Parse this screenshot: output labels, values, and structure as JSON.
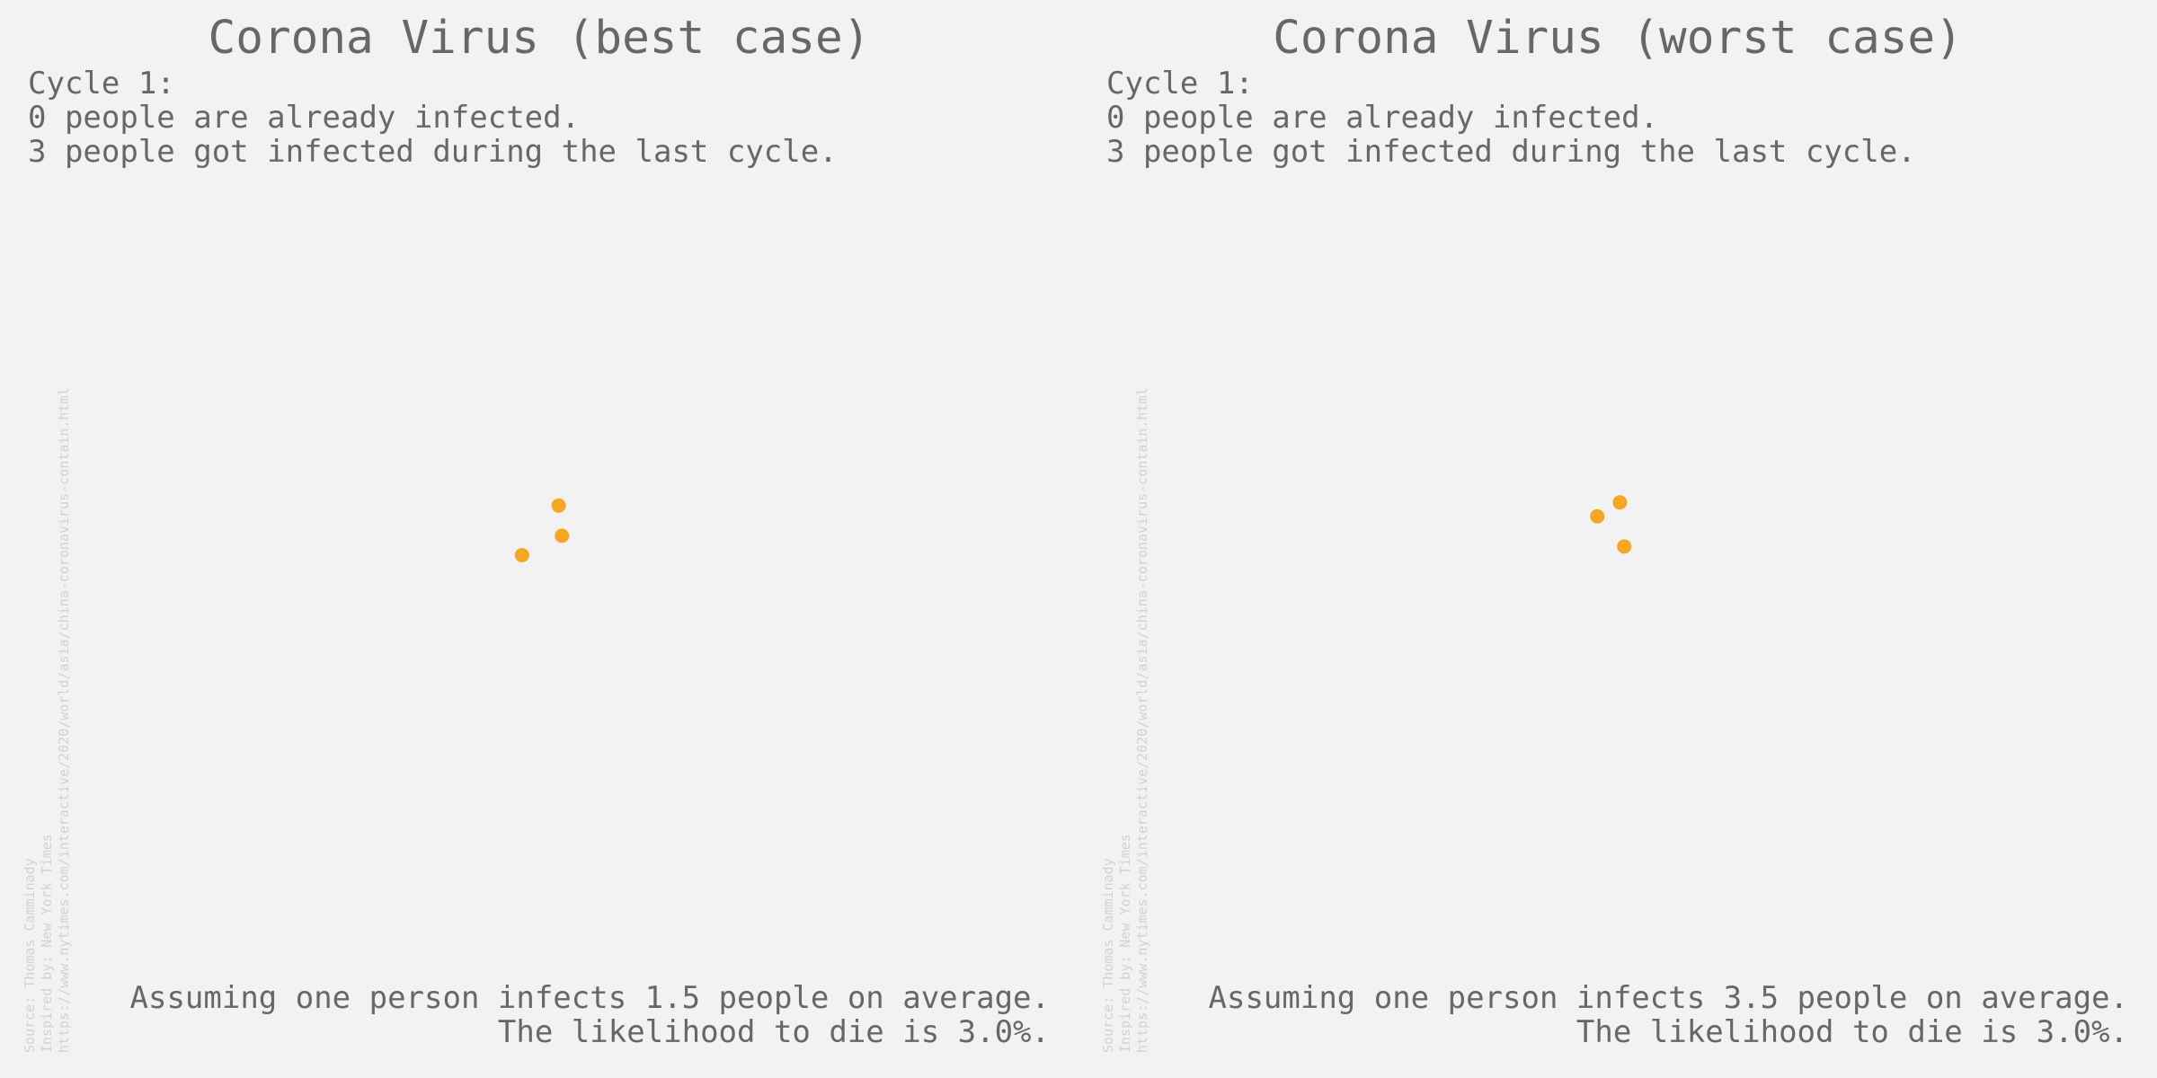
{
  "colors": {
    "background": "#f2f2f2",
    "text": "#676767",
    "source_text": "#d2d2d2",
    "infected": "#f5a623"
  },
  "panels": [
    {
      "title": "Corona Virus (best case)",
      "stats": {
        "cycle": "Cycle 1:",
        "already_infected": "0 people are already infected.",
        "new_infected": "3 people got infected during the last cycle."
      },
      "source": {
        "line1": "Source: Thomas Camminady",
        "line2": "Inspired by: New York Times",
        "line3": "https://www.nytimes.com/interactive/2020/world/asia/china-coronavirus-contain.html"
      },
      "footer": {
        "line1": "Assuming one person infects 1.5 people on average.",
        "line2": "The likelihood to die is 3.0%."
      }
    },
    {
      "title": "Corona Virus (worst case)",
      "stats": {
        "cycle": "Cycle 1:",
        "already_infected": "0 people are already infected.",
        "new_infected": "3 people got infected during the last cycle."
      },
      "source": {
        "line1": "Source: Thomas Camminady",
        "line2": "Inspired by: New York Times",
        "line3": "https://www.nytimes.com/interactive/2020/world/asia/china-coronavirus-contain.html"
      },
      "footer": {
        "line1": "Assuming one person infects 3.5 people on average.",
        "line2": "The likelihood to die is 3.0%."
      }
    }
  ],
  "chart_data": [
    {
      "type": "scatter",
      "xlim": [
        0,
        1
      ],
      "ylim": [
        0,
        1
      ],
      "grid": false,
      "series": [
        {
          "color": "#f5a623",
          "points": [
            {
              "x": 0.518,
              "y": 0.531
            },
            {
              "x": 0.521,
              "y": 0.503
            },
            {
              "x": 0.484,
              "y": 0.485
            }
          ]
        }
      ]
    },
    {
      "type": "scatter",
      "xlim": [
        0,
        1
      ],
      "ylim": [
        0,
        1
      ],
      "grid": false,
      "series": [
        {
          "color": "#f5a623",
          "points": [
            {
              "x": 0.502,
              "y": 0.534
            },
            {
              "x": 0.481,
              "y": 0.521
            },
            {
              "x": 0.506,
              "y": 0.493
            }
          ]
        }
      ]
    }
  ]
}
